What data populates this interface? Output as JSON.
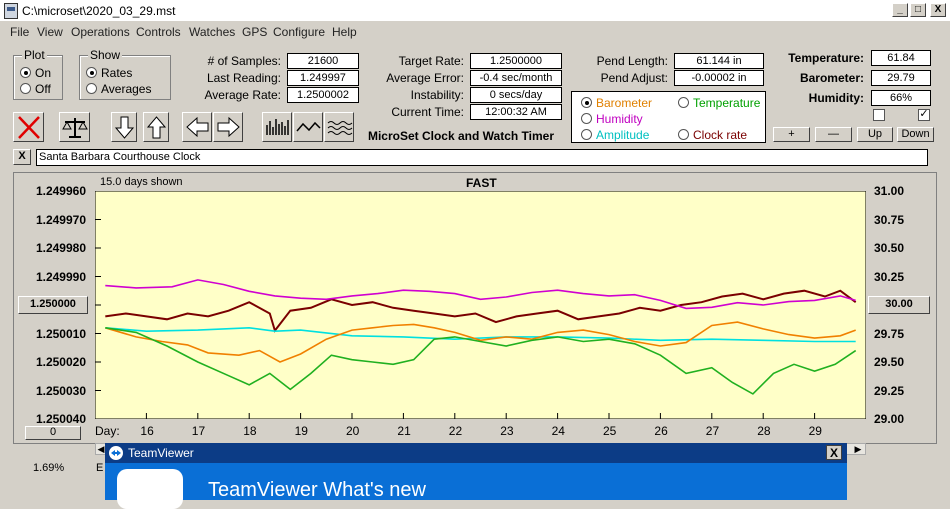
{
  "window": {
    "title": "C:\\microset\\2020_03_29.mst",
    "min": "_",
    "max": "□",
    "close": "X"
  },
  "menu": [
    "File",
    "View",
    "Operations",
    "Controls",
    "Watches",
    "GPS",
    "Configure",
    "Help"
  ],
  "plot": {
    "label": "Plot",
    "on": "On",
    "off": "Off"
  },
  "show": {
    "label": "Show",
    "rates": "Rates",
    "averages": "Averages"
  },
  "stats": {
    "samples_label": "# of Samples:",
    "samples": "21600",
    "last_label": "Last Reading:",
    "last": "1.249997",
    "avg_label": "Average Rate:",
    "avg": "1.2500002"
  },
  "target": {
    "rate_label": "Target Rate:",
    "rate": "1.2500000",
    "err_label": "Average Error:",
    "err": "-0.4 sec/month",
    "inst_label": "Instability:",
    "inst": "0 secs/day",
    "time_label": "Current Time:",
    "time": "12:00:32 AM"
  },
  "app_name": "MicroSet Clock and Watch Timer",
  "pend": {
    "len_label": "Pend Length:",
    "len": "61.144 in",
    "adj_label": "Pend Adjust:",
    "adj": "-0.00002 in"
  },
  "overlay": {
    "barometer": "Barometer",
    "temperature": "Temperature",
    "humidity": "Humidity",
    "amplitude": "Amplitude",
    "clock_rate": "Clock rate"
  },
  "env": {
    "temp_label": "Temperature:",
    "temp": "61.84",
    "baro_label": "Barometer:",
    "baro": "29.79",
    "hum_label": "Humidity:",
    "hum": "66%"
  },
  "adjust_buttons": {
    "plus": "+",
    "minus": "—",
    "up": "Up",
    "down": "Down"
  },
  "clock_name_btn": "X",
  "clock_name": "Santa Barbara Courthouse Clock",
  "chart": {
    "days_shown": "15.0 days shown",
    "mode": "FAST",
    "center_left": "1.250000",
    "center_right": "30.00",
    "bottom_btn": "0",
    "day_label": "Day:",
    "footer_pct": "1.69%",
    "footer_e": "E"
  },
  "chart_data": {
    "type": "line",
    "left_ticks": [
      "1.249960",
      "1.249970",
      "1.249980",
      "1.249990",
      "1.250000",
      "1.250010",
      "1.250020",
      "1.250030",
      "1.250040"
    ],
    "right_ticks": [
      "31.00",
      "30.75",
      "30.50",
      "30.25",
      "30.00",
      "29.75",
      "29.50",
      "29.25",
      "29.00"
    ],
    "x_ticks": [
      "16",
      "17",
      "18",
      "19",
      "20",
      "21",
      "22",
      "23",
      "24",
      "25",
      "26",
      "27",
      "28",
      "29"
    ],
    "xlim": [
      15.0,
      30.0
    ],
    "y_left_lim": [
      1.24996,
      1.25004
    ],
    "y_right_lim": [
      29.0,
      31.0
    ],
    "series": [
      {
        "color": "#7a0000",
        "x": [
          15.2,
          15.6,
          16,
          16.4,
          16.8,
          17.2,
          17.6,
          18,
          18.4,
          18.5,
          18.8,
          19.2,
          19.6,
          20,
          20.4,
          20.8,
          21.2,
          21.6,
          22,
          22.4,
          22.8,
          23.2,
          23.6,
          24,
          24.4,
          24.8,
          25.2,
          25.6,
          26,
          26.4,
          26.8,
          27.2,
          27.6,
          28,
          28.4,
          28.8,
          29.2,
          29.5,
          29.8
        ],
        "y": [
          1.250004,
          1.250003,
          1.250004,
          1.250005,
          1.250003,
          1.250004,
          1.250002,
          1.249999,
          1.250003,
          1.250009,
          1.250002,
          1.250001,
          1.249998,
          1.25,
          1.249999,
          1.250001,
          1.250002,
          1.250003,
          1.250004,
          1.250003,
          1.250006,
          1.250004,
          1.250003,
          1.250002,
          1.250005,
          1.250004,
          1.250003,
          1.250001,
          1.250002,
          1.25,
          1.249999,
          1.249997,
          1.249996,
          1.249998,
          1.249996,
          1.249995,
          1.249997,
          1.249995,
          1.249999
        ]
      },
      {
        "color": "#d000d0",
        "x": [
          15.2,
          15.8,
          16.5,
          17,
          17.5,
          18,
          18.5,
          19,
          19.5,
          20,
          20.5,
          21,
          21.5,
          22,
          22.5,
          23,
          23.5,
          24,
          24.5,
          25,
          25.5,
          26,
          26.5,
          27,
          27.5,
          28,
          28.5,
          29,
          29.5,
          29.8
        ],
        "y": [
          30.17,
          30.15,
          30.16,
          30.22,
          30.18,
          30.12,
          30.08,
          30.06,
          30.05,
          30.08,
          30.1,
          30.13,
          30.12,
          30.1,
          30.05,
          30.07,
          30.11,
          30.13,
          30.1,
          30.08,
          30.09,
          30.04,
          29.97,
          29.98,
          30.02,
          30.0,
          30.03,
          30.04,
          30.08,
          30.04
        ]
      },
      {
        "color": "#00e0e0",
        "x": [
          15.2,
          16,
          17,
          18,
          18.5,
          19,
          20,
          21,
          22,
          23,
          24,
          25,
          26,
          27,
          28,
          29,
          29.8
        ],
        "y": [
          29.8,
          29.77,
          29.78,
          29.8,
          29.77,
          29.78,
          29.73,
          29.72,
          29.7,
          29.72,
          29.72,
          29.71,
          29.69,
          29.7,
          29.69,
          29.68,
          29.68
        ]
      },
      {
        "color": "#f08000",
        "x": [
          15.2,
          15.8,
          16.3,
          16.8,
          17.2,
          17.8,
          18.2,
          18.6,
          19,
          19.5,
          20,
          20.4,
          20.8,
          21.2,
          21.6,
          22,
          22.5,
          23,
          23.5,
          24,
          24.5,
          25,
          25.5,
          26,
          26.5,
          27,
          27.5,
          28,
          28.5,
          29,
          29.5,
          29.8
        ],
        "y": [
          29.8,
          29.72,
          29.68,
          29.65,
          29.58,
          29.56,
          29.6,
          29.5,
          29.57,
          29.7,
          29.78,
          29.8,
          29.82,
          29.83,
          29.8,
          29.76,
          29.69,
          29.72,
          29.7,
          29.76,
          29.78,
          29.74,
          29.68,
          29.64,
          29.67,
          29.82,
          29.85,
          29.79,
          29.74,
          29.71,
          29.73,
          29.78
        ]
      },
      {
        "color": "#20b020",
        "x": [
          15.2,
          15.8,
          16.4,
          17,
          17.6,
          18,
          18.4,
          18.8,
          19.2,
          19.6,
          20,
          20.4,
          20.8,
          21.2,
          21.6,
          22,
          22.5,
          23,
          23.5,
          24,
          24.5,
          25,
          25.5,
          26,
          26.5,
          27,
          27.4,
          27.8,
          28.2,
          28.6,
          29,
          29.4,
          29.8
        ],
        "y": [
          29.8,
          29.76,
          29.64,
          29.5,
          29.38,
          29.3,
          29.4,
          29.26,
          29.4,
          29.56,
          29.52,
          29.5,
          29.48,
          29.52,
          29.7,
          29.72,
          29.68,
          29.64,
          29.69,
          29.72,
          29.68,
          29.7,
          29.66,
          29.56,
          29.4,
          29.45,
          29.32,
          29.22,
          29.4,
          29.48,
          29.42,
          29.48,
          29.6
        ]
      }
    ]
  },
  "teamviewer": {
    "title": "TeamViewer",
    "close": "X",
    "heading": "TeamViewer What's new"
  }
}
